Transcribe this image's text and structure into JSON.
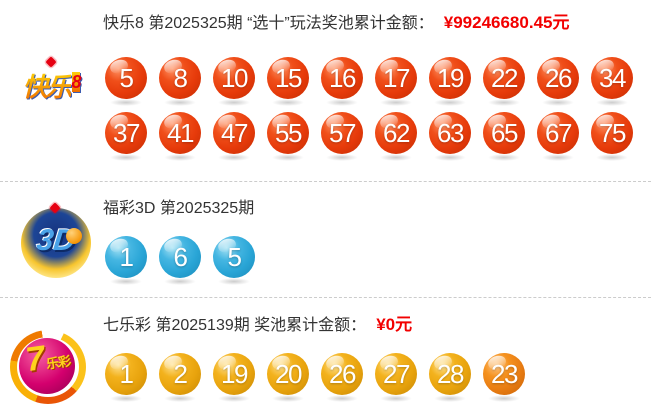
{
  "kuaile8": {
    "title": "快乐8 第2025325期 “选十”玩法奖池累计金额：",
    "amount": "¥99246680.45元",
    "logo": {
      "main": "快乐",
      "eight": "8"
    },
    "row1": [
      5,
      8,
      10,
      15,
      16,
      17,
      19,
      22,
      26,
      34
    ],
    "row2": [
      37,
      41,
      47,
      55,
      57,
      62,
      63,
      65,
      67,
      75
    ]
  },
  "fucai3d": {
    "title": "福彩3D 第2025325期",
    "logo": {
      "text": "3D"
    },
    "balls": [
      1,
      6,
      5
    ]
  },
  "qilecai": {
    "title": "七乐彩 第2025139期 奖池累计金额：",
    "amount": "¥0元",
    "logo": {
      "seven": "7",
      "lecai": "乐彩"
    },
    "balls": [
      1,
      2,
      19,
      20,
      26,
      27,
      28
    ],
    "special_ball": 23
  },
  "icons": {
    "knot": "china-welfare-knot"
  },
  "colors": {
    "amount_red": "#f20000",
    "title_gray": "#333333",
    "ball_red": "#e63a0a",
    "ball_blue": "#29a5d6",
    "ball_gold": "#e8a30d",
    "ball_orange_special": "#e87c12",
    "separator_dashed": "#cccccc",
    "background": "#ffffff"
  }
}
